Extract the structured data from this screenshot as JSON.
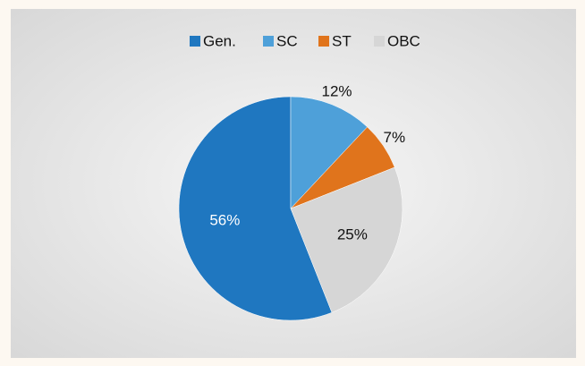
{
  "chart_data": {
    "type": "pie",
    "categories": [
      "Gen.",
      "SC",
      "ST",
      "OBC"
    ],
    "values": [
      56,
      12,
      7,
      25
    ],
    "value_labels": [
      "56%",
      "12%",
      "7%",
      "25%"
    ],
    "colors": [
      "#1f77c0",
      "#4ea0d9",
      "#e0741c",
      "#d6d6d6"
    ],
    "legend": "top"
  }
}
